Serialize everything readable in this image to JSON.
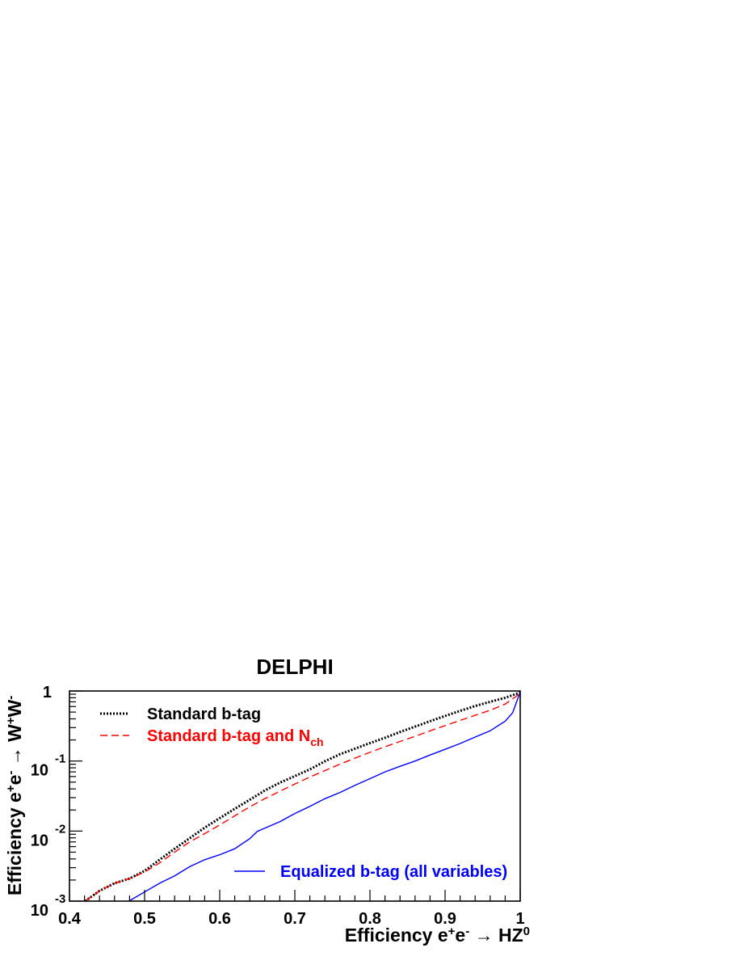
{
  "chart_data": {
    "type": "line",
    "title": "DELPHI",
    "xlabel": "Efficiency e⁺e⁻ → HZ⁰",
    "ylabel": "Efficiency e⁺e⁻ → W⁺W⁻",
    "xlim": [
      0.4,
      1.0
    ],
    "ylim": [
      0.001,
      1
    ],
    "yscale": "log",
    "x_ticks": [
      "0.4",
      "0.5",
      "0.6",
      "0.7",
      "0.8",
      "0.9",
      "1"
    ],
    "y_ticks": [
      {
        "value": 1,
        "base": "1",
        "exp": ""
      },
      {
        "value": 0.1,
        "base": "10",
        "exp": "-1"
      },
      {
        "value": 0.01,
        "base": "10",
        "exp": "-2"
      },
      {
        "value": 0.001,
        "base": "10",
        "exp": "-3"
      }
    ],
    "grid": false,
    "series": [
      {
        "name": "Standard b-tag",
        "color": "#000000",
        "style": "dotted",
        "x": [
          0.421,
          0.44,
          0.46,
          0.48,
          0.5,
          0.52,
          0.54,
          0.56,
          0.58,
          0.6,
          0.62,
          0.64,
          0.66,
          0.68,
          0.7,
          0.72,
          0.74,
          0.76,
          0.78,
          0.8,
          0.82,
          0.84,
          0.86,
          0.88,
          0.9,
          0.92,
          0.94,
          0.96,
          0.98,
          1.0
        ],
        "y": [
          0.001,
          0.0014,
          0.0018,
          0.0021,
          0.0027,
          0.0039,
          0.0056,
          0.0079,
          0.0112,
          0.0153,
          0.0208,
          0.028,
          0.038,
          0.049,
          0.061,
          0.076,
          0.099,
          0.125,
          0.15,
          0.18,
          0.215,
          0.26,
          0.31,
          0.37,
          0.44,
          0.52,
          0.61,
          0.7,
          0.8,
          0.95
        ]
      },
      {
        "name": "Standard b-tag and  N",
        "name_sub": "ch",
        "color": "#ff0000",
        "style": "dashed",
        "x": [
          0.421,
          0.44,
          0.46,
          0.48,
          0.5,
          0.52,
          0.54,
          0.56,
          0.58,
          0.6,
          0.62,
          0.64,
          0.66,
          0.68,
          0.7,
          0.72,
          0.74,
          0.76,
          0.78,
          0.8,
          0.82,
          0.84,
          0.86,
          0.88,
          0.9,
          0.92,
          0.94,
          0.96,
          0.98,
          1.0
        ],
        "y": [
          0.001,
          0.0014,
          0.0018,
          0.0021,
          0.0026,
          0.0035,
          0.005,
          0.007,
          0.0092,
          0.0122,
          0.0165,
          0.0222,
          0.029,
          0.037,
          0.047,
          0.059,
          0.073,
          0.09,
          0.11,
          0.133,
          0.16,
          0.19,
          0.225,
          0.27,
          0.32,
          0.38,
          0.45,
          0.53,
          0.65,
          0.92
        ]
      },
      {
        "name": "Equalized b-tag (all variables)",
        "color": "#0000ff",
        "style": "solid",
        "x": [
          0.479,
          0.5,
          0.52,
          0.54,
          0.56,
          0.58,
          0.6,
          0.62,
          0.64,
          0.65,
          0.68,
          0.7,
          0.72,
          0.74,
          0.76,
          0.78,
          0.8,
          0.82,
          0.84,
          0.86,
          0.88,
          0.9,
          0.92,
          0.94,
          0.96,
          0.98,
          0.99,
          1.0
        ],
        "y": [
          0.001,
          0.00135,
          0.0018,
          0.0023,
          0.0031,
          0.0039,
          0.0046,
          0.0056,
          0.0078,
          0.0099,
          0.0136,
          0.0178,
          0.0225,
          0.029,
          0.0355,
          0.045,
          0.056,
          0.07,
          0.084,
          0.1,
          0.122,
          0.147,
          0.178,
          0.22,
          0.27,
          0.37,
          0.49,
          0.97
        ]
      }
    ]
  }
}
